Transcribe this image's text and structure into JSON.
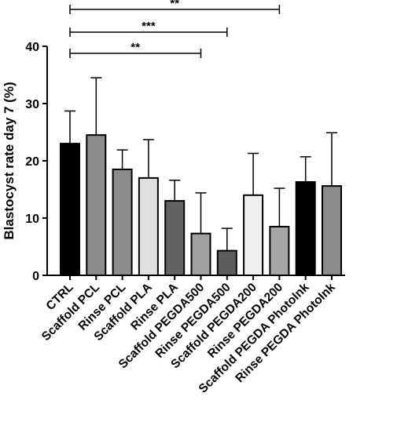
{
  "chart_data": {
    "type": "bar",
    "ylabel": "Blastocyst rate day 7 (%)",
    "xlabel": "",
    "ylim": [
      0,
      40
    ],
    "yticks": [
      0,
      10,
      20,
      30,
      40
    ],
    "categories": [
      "CTRL",
      "Scaffold PCL",
      "Rinse PCL",
      "Scaffold PLA",
      "Rinse PLA",
      "Scaffold PEGDA500",
      "Rinse PEGDA500",
      "Scaffold PEGDA200",
      "Rinse PEGDA200",
      "Scaffold PEGDA PhotoInk",
      "Rinse PEGDA PhotoInk"
    ],
    "values": [
      23.0,
      24.5,
      18.5,
      17.0,
      13.0,
      7.3,
      4.3,
      14.0,
      8.5,
      16.3,
      15.6
    ],
    "errors": [
      5.7,
      10.0,
      3.4,
      6.7,
      3.6,
      7.1,
      3.9,
      7.3,
      6.7,
      4.4,
      9.3
    ],
    "bar_colors": [
      "#000000",
      "#8c8c8c",
      "#8c8c8c",
      "#e0e0e0",
      "#626262",
      "#a0a0a0",
      "#5c5c5c",
      "#efefef",
      "#a6a6a6",
      "#000000",
      "#8c8c8c"
    ],
    "significance": [
      {
        "from": 0,
        "to": 8,
        "label": "**"
      },
      {
        "from": 0,
        "to": 6,
        "label": "***"
      },
      {
        "from": 0,
        "to": 5,
        "label": "**"
      }
    ]
  }
}
